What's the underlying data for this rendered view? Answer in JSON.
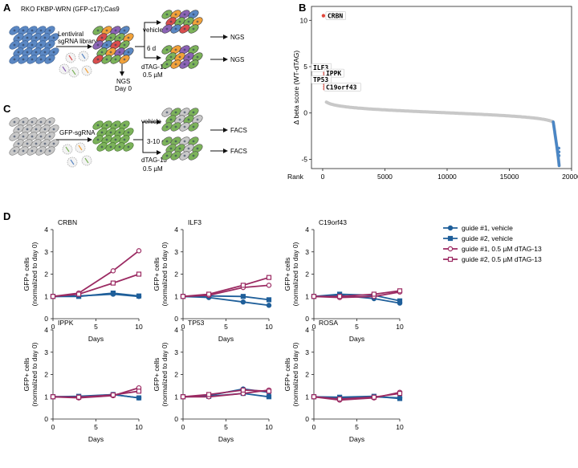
{
  "panels": {
    "A": "A",
    "B": "B",
    "C": "C",
    "D": "D"
  },
  "panelA": {
    "title": "RKO FKBP-WRN (GFP-c17);Cas9",
    "library_line1": "Lentiviral",
    "library_line2": "sgRNA library",
    "timepoint": "6 d",
    "vehicle": "vehicle",
    "dtag_line1": "dTAG-13",
    "dtag_line2": "0.5 µM",
    "ngs1": "NGS",
    "ngs2": "NGS",
    "ngs_day0_line1": "NGS",
    "ngs_day0_line2": "Day 0"
  },
  "panelC": {
    "guide": "GFP-sgRNA",
    "timepoint": "3-10 d",
    "vehicle": "vehicle",
    "dtag_line1": "dTAG-13",
    "dtag_line2": "0.5 µM",
    "facs1": "FACS",
    "facs2": "FACS"
  },
  "colors": {
    "vehicle": "#1f5f9a",
    "dtag": "#9b2a62",
    "rank_gray": "#c8c8c8",
    "rank_blue": "#4a86c5",
    "rank_red": "#e0463a",
    "cell_blue": "#5b88c4",
    "cell_green": "#7cb35a",
    "cell_gray": "#c9c9c9",
    "cell_orange": "#f2a23a",
    "cell_purple": "#8b63b5"
  },
  "chart_data": [
    {
      "id": "B",
      "type": "scatter",
      "title": "",
      "xlabel": "Rank",
      "ylabel": "Δ beta score (WT-dTAG)",
      "xlim": [
        -900,
        20000
      ],
      "ylim": [
        -6,
        11.5
      ],
      "xticks": [
        0,
        5000,
        10000,
        15000,
        20000
      ],
      "yticks": [
        -5,
        0,
        5,
        10
      ],
      "n_genes": 19000,
      "labeled_hits": [
        {
          "gene": "CRBN",
          "rank": 1,
          "value": 10.5
        },
        {
          "gene": "ILF3",
          "rank": 2,
          "value": 4.9
        },
        {
          "gene": "IPPK",
          "rank": 3,
          "value": 4.3
        },
        {
          "gene": "TP53",
          "rank": 4,
          "value": 3.6
        },
        {
          "gene": "C19orf43",
          "rank": 5,
          "value": 2.8
        }
      ]
    },
    {
      "id": "D",
      "type": "line",
      "xlabel": "Days",
      "ylabel_line1": "GFP+ cells",
      "ylabel_line2": "(normalized to day 0)",
      "xlim": [
        0,
        10
      ],
      "ylim": [
        0,
        4
      ],
      "xticks": [
        0,
        5,
        10
      ],
      "yticks": [
        0,
        1,
        2,
        3,
        4
      ],
      "x": [
        0,
        3,
        7,
        10
      ],
      "legend": [
        "guide #1, vehicle",
        "guide #2, vehicle",
        "guide #1, 0.5 µM dTAG-13",
        "guide #2, 0.5 µM dTAG-13"
      ],
      "subplots": [
        {
          "title": "CRBN",
          "series": [
            {
              "name": "guide #1, vehicle",
              "values": [
                1,
                1.02,
                1.1,
                1.0
              ]
            },
            {
              "name": "guide #2, vehicle",
              "values": [
                1,
                1.0,
                1.15,
                1.02
              ]
            },
            {
              "name": "guide #1, 0.5 µM dTAG-13",
              "values": [
                1,
                1.15,
                2.15,
                3.05
              ]
            },
            {
              "name": "guide #2, 0.5 µM dTAG-13",
              "values": [
                1,
                1.1,
                1.6,
                2.0
              ]
            }
          ]
        },
        {
          "title": "ILF3",
          "series": [
            {
              "name": "guide #1, vehicle",
              "values": [
                1,
                0.95,
                0.75,
                0.6
              ]
            },
            {
              "name": "guide #2, vehicle",
              "values": [
                1,
                1.02,
                1.0,
                0.85
              ]
            },
            {
              "name": "guide #1, 0.5 µM dTAG-13",
              "values": [
                1,
                1.05,
                1.4,
                1.5
              ]
            },
            {
              "name": "guide #2, 0.5 µM dTAG-13",
              "values": [
                1,
                1.1,
                1.5,
                1.85
              ]
            }
          ]
        },
        {
          "title": "C19orf43",
          "series": [
            {
              "name": "guide #1, vehicle",
              "values": [
                1,
                1.05,
                0.9,
                0.7
              ]
            },
            {
              "name": "guide #2, vehicle",
              "values": [
                1,
                1.1,
                1.05,
                0.8
              ]
            },
            {
              "name": "guide #1, 0.5 µM dTAG-13",
              "values": [
                1,
                0.95,
                1.0,
                1.2
              ]
            },
            {
              "name": "guide #2, 0.5 µM dTAG-13",
              "values": [
                1,
                1.0,
                1.1,
                1.25
              ]
            }
          ]
        },
        {
          "title": "IPPK",
          "series": [
            {
              "name": "guide #1, vehicle",
              "values": [
                1,
                1.0,
                1.1,
                0.95
              ]
            },
            {
              "name": "guide #2, vehicle",
              "values": [
                1,
                1.02,
                1.1,
                0.95
              ]
            },
            {
              "name": "guide #1, 0.5 µM dTAG-13",
              "values": [
                1,
                0.95,
                1.05,
                1.4
              ]
            },
            {
              "name": "guide #2, 0.5 µM dTAG-13",
              "values": [
                1,
                0.98,
                1.08,
                1.25
              ]
            }
          ]
        },
        {
          "title": "TP53",
          "series": [
            {
              "name": "guide #1, vehicle",
              "values": [
                1,
                1.05,
                1.35,
                1.2
              ]
            },
            {
              "name": "guide #2, vehicle",
              "values": [
                1,
                1.02,
                1.15,
                1.0
              ]
            },
            {
              "name": "guide #1, 0.5 µM dTAG-13",
              "values": [
                1,
                1.0,
                1.15,
                1.3
              ]
            },
            {
              "name": "guide #2, 0.5 µM dTAG-13",
              "values": [
                1,
                1.1,
                1.3,
                1.25
              ]
            }
          ]
        },
        {
          "title": "ROSA",
          "series": [
            {
              "name": "guide #1, vehicle",
              "values": [
                1,
                0.95,
                1.0,
                0.95
              ]
            },
            {
              "name": "guide #2, vehicle",
              "values": [
                1,
                0.98,
                1.02,
                0.92
              ]
            },
            {
              "name": "guide #1, 0.5 µM dTAG-13",
              "values": [
                1,
                0.85,
                0.95,
                1.2
              ]
            },
            {
              "name": "guide #2, 0.5 µM dTAG-13",
              "values": [
                1,
                0.9,
                0.98,
                1.15
              ]
            }
          ]
        }
      ]
    }
  ]
}
